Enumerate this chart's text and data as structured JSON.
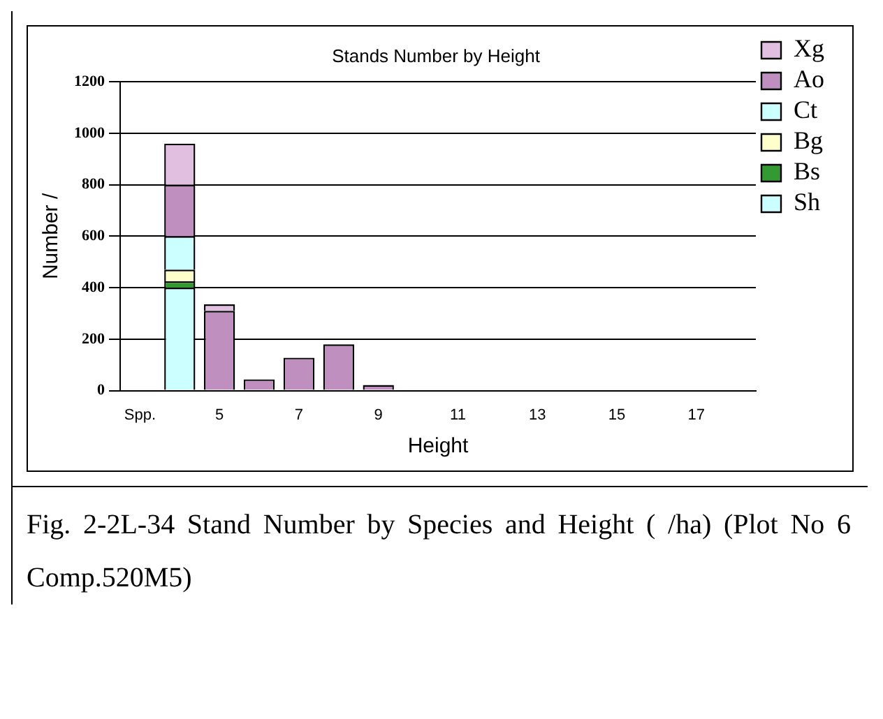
{
  "chart_data": {
    "type": "bar",
    "title": "Stands Number by Height",
    "xlabel": "Height",
    "ylabel": "Number /",
    "categories": [
      "Spp.",
      null,
      "5",
      null,
      "7",
      null,
      "9",
      null,
      "11",
      null,
      "13",
      null,
      "15",
      null,
      "17",
      null
    ],
    "stacked": true,
    "series": [
      {
        "name": "Sh",
        "color": "#ccffff",
        "values": [
          0,
          400,
          0,
          0,
          0,
          0,
          0,
          0,
          0,
          0,
          0,
          0,
          0,
          0,
          0,
          0
        ]
      },
      {
        "name": "Bs",
        "color": "#339933",
        "values": [
          0,
          25,
          0,
          0,
          0,
          0,
          0,
          0,
          0,
          0,
          0,
          0,
          0,
          0,
          0,
          0
        ]
      },
      {
        "name": "Bg",
        "color": "#ffffcc",
        "values": [
          0,
          45,
          0,
          0,
          0,
          0,
          0,
          0,
          0,
          0,
          0,
          0,
          0,
          0,
          0,
          0
        ]
      },
      {
        "name": "Ct",
        "color": "#ccffff",
        "values": [
          0,
          130,
          0,
          0,
          0,
          0,
          0,
          0,
          0,
          0,
          0,
          0,
          0,
          0,
          0,
          0
        ]
      },
      {
        "name": "Ao",
        "color": "#bf8fbf",
        "values": [
          0,
          200,
          310,
          44,
          128,
          180,
          22,
          0,
          0,
          0,
          0,
          0,
          0,
          0,
          0,
          0
        ]
      },
      {
        "name": "Xg",
        "color": "#e0bfe0",
        "values": [
          0,
          160,
          25,
          0,
          0,
          0,
          0,
          0,
          0,
          0,
          0,
          0,
          0,
          0,
          0,
          0
        ]
      }
    ],
    "ylim": [
      0,
      1200
    ],
    "yticks": [
      0,
      200,
      400,
      600,
      800,
      1000,
      1200
    ],
    "grid": "y",
    "legend": "top right",
    "annotations": [
      "Fig. 2-2L-34 Stand Number by Species and Height ( /ha) (Plot No 6 Comp.520M5)"
    ]
  }
}
